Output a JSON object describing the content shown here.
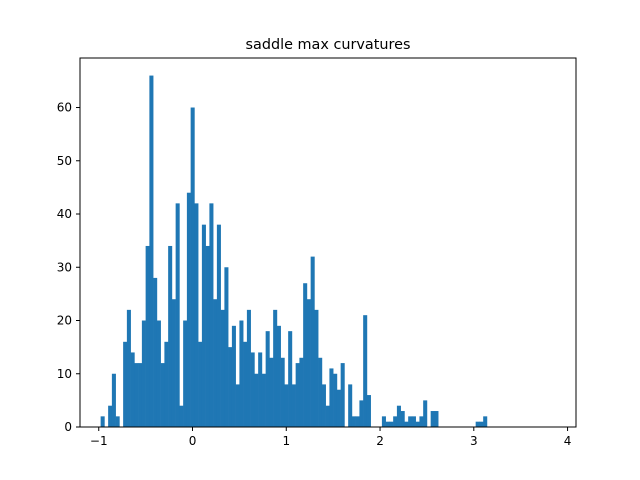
{
  "chart_data": {
    "type": "bar",
    "title": "saddle max curvatures",
    "xlabel": "",
    "ylabel": "",
    "xlim": [
      -1.2,
      4.09
    ],
    "ylim": [
      0,
      69.3
    ],
    "xticks": [
      -1,
      0,
      1,
      2,
      3,
      4
    ],
    "xtick_labels": [
      "−1",
      "0",
      "1",
      "2",
      "3",
      "4"
    ],
    "yticks": [
      0,
      10,
      20,
      30,
      40,
      50,
      60
    ],
    "ytick_labels": [
      "0",
      "10",
      "20",
      "30",
      "40",
      "50",
      "60"
    ],
    "grid": false,
    "bar_color": "#1f77b4",
    "bin_start": -0.98,
    "bin_width": 0.04,
    "counts": [
      2,
      0,
      4,
      10,
      2,
      0,
      16,
      22,
      14,
      12,
      12,
      20,
      34,
      66,
      28,
      20,
      12,
      16,
      34,
      24,
      42,
      4,
      20,
      44,
      60,
      42,
      16,
      38,
      34,
      42,
      24,
      38,
      22,
      30,
      15,
      19,
      8,
      20,
      16,
      22,
      14,
      10,
      14,
      10,
      18,
      13,
      22,
      19,
      13,
      8,
      18,
      8,
      12,
      13,
      27,
      24,
      32,
      22,
      13,
      8,
      4,
      11,
      10,
      7,
      12,
      0,
      8,
      2,
      2,
      5,
      21,
      6,
      0,
      0,
      0,
      2,
      1,
      1,
      2,
      4,
      3,
      1,
      2,
      2,
      1,
      2,
      5,
      0,
      3,
      3,
      0,
      0,
      0,
      0,
      0,
      0,
      0,
      0,
      0,
      0,
      1,
      1,
      2
    ]
  }
}
